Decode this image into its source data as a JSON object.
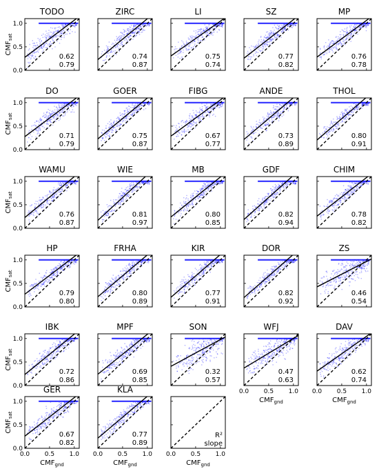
{
  "chart_data": {
    "type": "scatter",
    "layout": {
      "rows": 6,
      "cols": 5
    },
    "xlim": [
      0,
      1.1
    ],
    "ylim": [
      0,
      1.1
    ],
    "x_ticks": [
      "0.0",
      "0.5",
      "1.0"
    ],
    "y_ticks": [
      "0.0",
      "0.5",
      "1.0"
    ],
    "xlabel": {
      "main": "CMF",
      "sub": "gnd"
    },
    "ylabel": {
      "main": "CMF",
      "sub": "sat"
    },
    "point_color": "#1a1aff",
    "regression_line_color": "#000000",
    "one_to_one_line": "dashed",
    "legend_panel": {
      "r2_label": "R²",
      "slope_label": "slope"
    },
    "panels": [
      {
        "name": "TODO",
        "r2": "0.62",
        "slope": "0.79"
      },
      {
        "name": "ZIRC",
        "r2": "0.74",
        "slope": "0.87"
      },
      {
        "name": "LI",
        "r2": "0.75",
        "slope": "0.74"
      },
      {
        "name": "SZ",
        "r2": "0.77",
        "slope": "0.82"
      },
      {
        "name": "MP",
        "r2": "0.76",
        "slope": "0.78"
      },
      {
        "name": "DO",
        "r2": "0.71",
        "slope": "0.79"
      },
      {
        "name": "GOER",
        "r2": "0.75",
        "slope": "0.87"
      },
      {
        "name": "FIBG",
        "r2": "0.67",
        "slope": "0.77"
      },
      {
        "name": "ANDE",
        "r2": "0.73",
        "slope": "0.89"
      },
      {
        "name": "THOL",
        "r2": "0.80",
        "slope": "0.91"
      },
      {
        "name": "WAMU",
        "r2": "0.76",
        "slope": "0.87"
      },
      {
        "name": "WIE",
        "r2": "0.81",
        "slope": "0.97"
      },
      {
        "name": "MB",
        "r2": "0.80",
        "slope": "0.85"
      },
      {
        "name": "GDF",
        "r2": "0.82",
        "slope": "0.94"
      },
      {
        "name": "CHIM",
        "r2": "0.78",
        "slope": "0.82"
      },
      {
        "name": "HP",
        "r2": "0.79",
        "slope": "0.80"
      },
      {
        "name": "FRHA",
        "r2": "0.80",
        "slope": "0.89"
      },
      {
        "name": "KIR",
        "r2": "0.77",
        "slope": "0.91"
      },
      {
        "name": "DOR",
        "r2": "0.82",
        "slope": "0.92"
      },
      {
        "name": "ZS",
        "r2": "0.46",
        "slope": "0.54"
      },
      {
        "name": "IBK",
        "r2": "0.72",
        "slope": "0.86"
      },
      {
        "name": "MPF",
        "r2": "0.69",
        "slope": "0.85"
      },
      {
        "name": "SON",
        "r2": "0.32",
        "slope": "0.57"
      },
      {
        "name": "WFJ",
        "r2": "0.47",
        "slope": "0.63"
      },
      {
        "name": "DAV",
        "r2": "0.62",
        "slope": "0.74"
      },
      {
        "name": "GER",
        "r2": "0.67",
        "slope": "0.82"
      },
      {
        "name": "KLA",
        "r2": "0.77",
        "slope": "0.89"
      }
    ]
  }
}
